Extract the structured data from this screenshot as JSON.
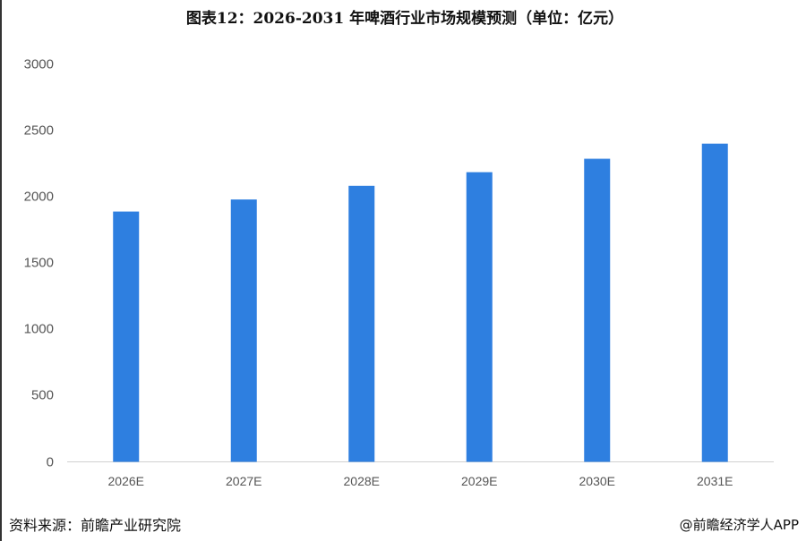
{
  "chart_data": {
    "type": "bar",
    "title": "图表12：2026-2031 年啤酒行业市场规模预测（单位：亿元）",
    "categories": [
      "2026E",
      "2027E",
      "2028E",
      "2029E",
      "2030E",
      "2031E"
    ],
    "values": [
      1888,
      1979,
      2082,
      2185,
      2286,
      2400
    ],
    "yticks": [
      "0",
      "500",
      "1000",
      "1500",
      "2000",
      "2500",
      "3000"
    ],
    "ylim": [
      0,
      3000
    ],
    "xlabel": "",
    "ylabel": "",
    "grid": false,
    "bar_color": "#2E7FE0"
  },
  "footer": {
    "source": "资料来源：前瞻产业研究院",
    "credit": "@前瞻经济学人APP"
  }
}
